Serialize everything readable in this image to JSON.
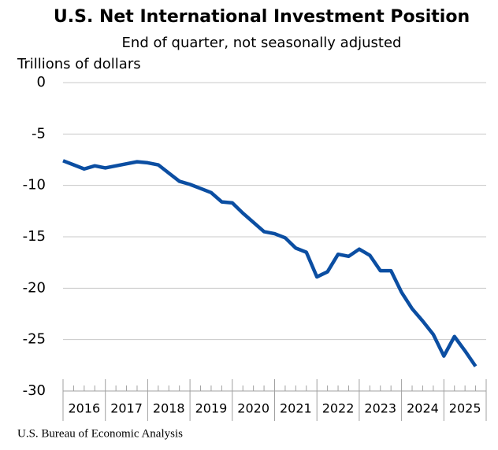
{
  "chart_data": {
    "type": "line",
    "title": "U.S. Net International Investment Position",
    "subtitle": "End of quarter, not seasonally adjusted",
    "y_label": "Trillions of dollars",
    "source": "U.S. Bureau of Economic Analysis",
    "categories": [
      null,
      null,
      "2016",
      null,
      null,
      null,
      "2017",
      null,
      null,
      null,
      "2018",
      null,
      null,
      null,
      "2019",
      null,
      null,
      null,
      "2020",
      null,
      null,
      null,
      "2021",
      null,
      null,
      null,
      "2022",
      null,
      null,
      null,
      "2023",
      null,
      null,
      null,
      "2024",
      null,
      null,
      null,
      "2025",
      null
    ],
    "series": [
      {
        "name": "Net international investment position",
        "color": "#0b4ea2",
        "values": [
          -7.6,
          -8.0,
          -8.4,
          -8.1,
          -8.3,
          -8.1,
          -7.9,
          -7.7,
          -7.8,
          -8.0,
          -8.8,
          -9.6,
          -9.9,
          -10.3,
          -10.7,
          -11.6,
          -11.7,
          -12.7,
          -13.6,
          -14.5,
          -14.7,
          -15.1,
          -16.1,
          -16.5,
          -18.9,
          -18.4,
          -16.7,
          -16.9,
          -16.2,
          -16.8,
          -18.3,
          -18.3,
          -20.4,
          -22.0,
          -23.2,
          -24.5,
          -26.6,
          -24.7,
          -26.1,
          -27.6
        ]
      }
    ],
    "ylim": [
      -30,
      0
    ],
    "yticks": [
      0,
      -5,
      -10,
      -15,
      -20,
      -25,
      -30
    ],
    "grid": true
  }
}
